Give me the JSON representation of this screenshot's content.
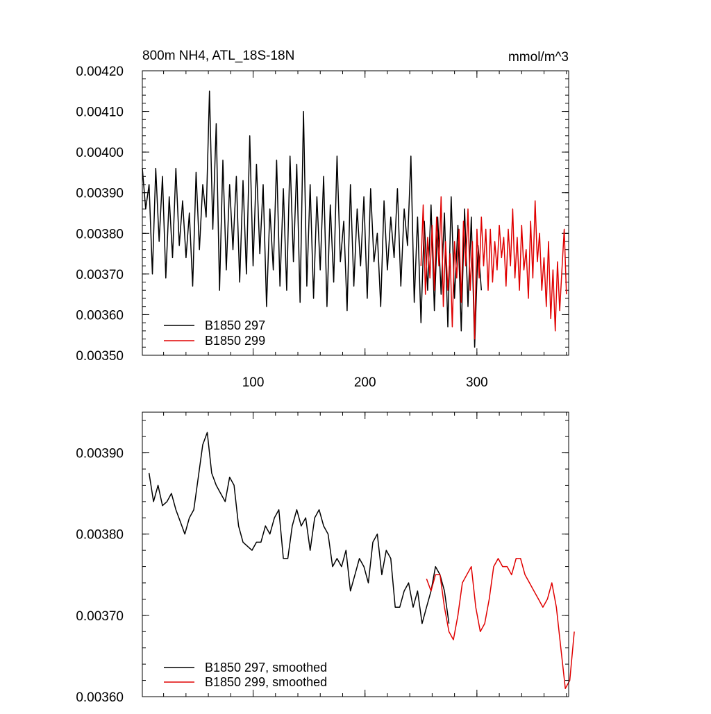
{
  "chart_data": [
    {
      "type": "line",
      "title_left": "800m NH4, ATL_18S-18N",
      "title_right": "mmol/m^3",
      "xlim": [
        1,
        382
      ],
      "ylim": [
        0.0035,
        0.0042
      ],
      "x_ticks": [
        100,
        200,
        300
      ],
      "y_ticks": [
        0.0035,
        0.0036,
        0.0037,
        0.0038,
        0.0039,
        0.004,
        0.0041,
        0.0042
      ],
      "y_tick_labels": [
        "0.00350",
        "0.00360",
        "0.00370",
        "0.00380",
        "0.00390",
        "0.00400",
        "0.00410",
        "0.00420"
      ],
      "legend": [
        "B1850 297",
        "B1850 299"
      ],
      "legend_position": "bottom-left",
      "series": [
        {
          "name": "B1850 297",
          "color": "#000000",
          "x_start": 1,
          "x_step": 3,
          "values": [
            0.00396,
            0.00386,
            0.00392,
            0.0037,
            0.00396,
            0.00378,
            0.00394,
            0.00369,
            0.00389,
            0.00374,
            0.00396,
            0.00377,
            0.00388,
            0.00374,
            0.00385,
            0.00367,
            0.00395,
            0.00376,
            0.00392,
            0.00384,
            0.00415,
            0.00381,
            0.00407,
            0.00366,
            0.00398,
            0.00371,
            0.00392,
            0.00376,
            0.00394,
            0.00368,
            0.00393,
            0.0037,
            0.00404,
            0.00372,
            0.00397,
            0.00375,
            0.00392,
            0.00362,
            0.00386,
            0.00371,
            0.00398,
            0.00367,
            0.00391,
            0.00366,
            0.00399,
            0.00373,
            0.00397,
            0.00363,
            0.0041,
            0.00367,
            0.00392,
            0.00364,
            0.00389,
            0.00371,
            0.00394,
            0.00362,
            0.00387,
            0.00368,
            0.00399,
            0.00373,
            0.00383,
            0.00361,
            0.00392,
            0.00367,
            0.00386,
            0.00372,
            0.00389,
            0.00364,
            0.00391,
            0.00373,
            0.0038,
            0.00362,
            0.00388,
            0.00371,
            0.00384,
            0.00374,
            0.00391,
            0.00367,
            0.00386,
            0.00377,
            0.00399,
            0.00363,
            0.00384,
            0.00358,
            0.00383,
            0.00366,
            0.00387,
            0.00361,
            0.00384,
            0.00365,
            0.00385,
            0.00357,
            0.00389,
            0.00364,
            0.00382,
            0.00356,
            0.00386,
            0.00362,
            0.00384,
            0.00352,
            0.00377,
            0.00366
          ]
        },
        {
          "name": "B1850 299",
          "color": "#e00000",
          "x_start": 250,
          "x_step": 2,
          "values": [
            0.00372,
            0.00387,
            0.00365,
            0.00379,
            0.00369,
            0.00382,
            0.00366,
            0.00384,
            0.00372,
            0.00389,
            0.00362,
            0.00378,
            0.00366,
            0.00375,
            0.00357,
            0.00378,
            0.00369,
            0.00381,
            0.00363,
            0.00383,
            0.00372,
            0.00386,
            0.00366,
            0.00378,
            0.00354,
            0.00381,
            0.00369,
            0.00384,
            0.00372,
            0.00381,
            0.00366,
            0.00381,
            0.00368,
            0.00378,
            0.00371,
            0.00382,
            0.00374,
            0.00379,
            0.00367,
            0.00381,
            0.00372,
            0.00386,
            0.00369,
            0.00379,
            0.00366,
            0.00382,
            0.00371,
            0.00376,
            0.00364,
            0.00383,
            0.00369,
            0.00388,
            0.00373,
            0.0038,
            0.00366,
            0.00374,
            0.00362,
            0.00378,
            0.00359,
            0.00371,
            0.00356,
            0.00373,
            0.00361,
            0.00371,
            0.00381,
            0.00365
          ]
        }
      ]
    },
    {
      "type": "line",
      "xlim": [
        1,
        382
      ],
      "ylim": [
        0.0036,
        0.00395
      ],
      "y_ticks": [
        0.0036,
        0.0037,
        0.0038,
        0.0039
      ],
      "y_tick_labels": [
        "0.00360",
        "0.00370",
        "0.00380",
        "0.00390"
      ],
      "legend": [
        "B1850 297, smoothed",
        "B1850 299, smoothed"
      ],
      "legend_position": "bottom-left",
      "series": [
        {
          "name": "B1850 297, smoothed",
          "color": "#000000",
          "x_start": 7,
          "x_step": 4,
          "values": [
            0.003875,
            0.00384,
            0.00386,
            0.003835,
            0.00384,
            0.00385,
            0.00383,
            0.003815,
            0.0038,
            0.00382,
            0.00383,
            0.00387,
            0.00391,
            0.003925,
            0.003875,
            0.00386,
            0.00385,
            0.00384,
            0.00387,
            0.00386,
            0.00381,
            0.00379,
            0.003785,
            0.00378,
            0.00379,
            0.00379,
            0.00381,
            0.0038,
            0.00382,
            0.00383,
            0.00377,
            0.00377,
            0.00381,
            0.00383,
            0.00381,
            0.00382,
            0.00378,
            0.00382,
            0.00383,
            0.00381,
            0.0038,
            0.00376,
            0.00377,
            0.00376,
            0.00378,
            0.00373,
            0.00375,
            0.00377,
            0.00376,
            0.00374,
            0.00379,
            0.0038,
            0.00375,
            0.00378,
            0.00377,
            0.00371,
            0.00371,
            0.00373,
            0.00374,
            0.00371,
            0.00373,
            0.00369,
            0.00371,
            0.00373,
            0.00376,
            0.00375,
            0.00373,
            0.00369
          ]
        },
        {
          "name": "B1850 299, smoothed",
          "color": "#e00000",
          "x_start": 255,
          "x_step": 4,
          "values": [
            0.003745,
            0.00373,
            0.00375,
            0.00375,
            0.00371,
            0.00368,
            0.00367,
            0.0037,
            0.00374,
            0.00375,
            0.00376,
            0.00371,
            0.00368,
            0.00369,
            0.00372,
            0.00376,
            0.00377,
            0.00376,
            0.00376,
            0.00375,
            0.00377,
            0.00377,
            0.00375,
            0.00374,
            0.00373,
            0.00372,
            0.00371,
            0.00372,
            0.00374,
            0.00371,
            0.00366,
            0.00361,
            0.00362,
            0.00368
          ]
        }
      ]
    }
  ]
}
